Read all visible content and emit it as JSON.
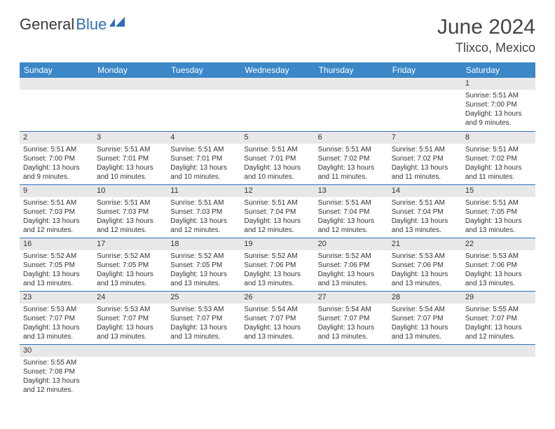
{
  "brand": {
    "text_dark": "General",
    "text_blue": "Blue"
  },
  "title": "June 2024",
  "location": "Tlixco, Mexico",
  "colors": {
    "header_bg": "#3b87c8",
    "header_text": "#ffffff",
    "daynum_bg": "#e8e8e8",
    "border": "#2d6fb8",
    "text": "#333333",
    "logo_dark": "#3a3a3a",
    "logo_blue": "#2d6fb8",
    "background": "#ffffff"
  },
  "fonts": {
    "title_size_pt": 30,
    "location_size_pt": 18,
    "header_size_pt": 12,
    "daynum_size_pt": 11,
    "body_size_pt": 10
  },
  "weekdays": [
    "Sunday",
    "Monday",
    "Tuesday",
    "Wednesday",
    "Thursday",
    "Friday",
    "Saturday"
  ],
  "weeks": [
    [
      null,
      null,
      null,
      null,
      null,
      null,
      {
        "n": "1",
        "sr": "Sunrise: 5:51 AM",
        "ss": "Sunset: 7:00 PM",
        "dl": "Daylight: 13 hours and 9 minutes."
      }
    ],
    [
      {
        "n": "2",
        "sr": "Sunrise: 5:51 AM",
        "ss": "Sunset: 7:00 PM",
        "dl": "Daylight: 13 hours and 9 minutes."
      },
      {
        "n": "3",
        "sr": "Sunrise: 5:51 AM",
        "ss": "Sunset: 7:01 PM",
        "dl": "Daylight: 13 hours and 10 minutes."
      },
      {
        "n": "4",
        "sr": "Sunrise: 5:51 AM",
        "ss": "Sunset: 7:01 PM",
        "dl": "Daylight: 13 hours and 10 minutes."
      },
      {
        "n": "5",
        "sr": "Sunrise: 5:51 AM",
        "ss": "Sunset: 7:01 PM",
        "dl": "Daylight: 13 hours and 10 minutes."
      },
      {
        "n": "6",
        "sr": "Sunrise: 5:51 AM",
        "ss": "Sunset: 7:02 PM",
        "dl": "Daylight: 13 hours and 11 minutes."
      },
      {
        "n": "7",
        "sr": "Sunrise: 5:51 AM",
        "ss": "Sunset: 7:02 PM",
        "dl": "Daylight: 13 hours and 11 minutes."
      },
      {
        "n": "8",
        "sr": "Sunrise: 5:51 AM",
        "ss": "Sunset: 7:02 PM",
        "dl": "Daylight: 13 hours and 11 minutes."
      }
    ],
    [
      {
        "n": "9",
        "sr": "Sunrise: 5:51 AM",
        "ss": "Sunset: 7:03 PM",
        "dl": "Daylight: 13 hours and 12 minutes."
      },
      {
        "n": "10",
        "sr": "Sunrise: 5:51 AM",
        "ss": "Sunset: 7:03 PM",
        "dl": "Daylight: 13 hours and 12 minutes."
      },
      {
        "n": "11",
        "sr": "Sunrise: 5:51 AM",
        "ss": "Sunset: 7:03 PM",
        "dl": "Daylight: 13 hours and 12 minutes."
      },
      {
        "n": "12",
        "sr": "Sunrise: 5:51 AM",
        "ss": "Sunset: 7:04 PM",
        "dl": "Daylight: 13 hours and 12 minutes."
      },
      {
        "n": "13",
        "sr": "Sunrise: 5:51 AM",
        "ss": "Sunset: 7:04 PM",
        "dl": "Daylight: 13 hours and 12 minutes."
      },
      {
        "n": "14",
        "sr": "Sunrise: 5:51 AM",
        "ss": "Sunset: 7:04 PM",
        "dl": "Daylight: 13 hours and 13 minutes."
      },
      {
        "n": "15",
        "sr": "Sunrise: 5:51 AM",
        "ss": "Sunset: 7:05 PM",
        "dl": "Daylight: 13 hours and 13 minutes."
      }
    ],
    [
      {
        "n": "16",
        "sr": "Sunrise: 5:52 AM",
        "ss": "Sunset: 7:05 PM",
        "dl": "Daylight: 13 hours and 13 minutes."
      },
      {
        "n": "17",
        "sr": "Sunrise: 5:52 AM",
        "ss": "Sunset: 7:05 PM",
        "dl": "Daylight: 13 hours and 13 minutes."
      },
      {
        "n": "18",
        "sr": "Sunrise: 5:52 AM",
        "ss": "Sunset: 7:05 PM",
        "dl": "Daylight: 13 hours and 13 minutes."
      },
      {
        "n": "19",
        "sr": "Sunrise: 5:52 AM",
        "ss": "Sunset: 7:06 PM",
        "dl": "Daylight: 13 hours and 13 minutes."
      },
      {
        "n": "20",
        "sr": "Sunrise: 5:52 AM",
        "ss": "Sunset: 7:06 PM",
        "dl": "Daylight: 13 hours and 13 minutes."
      },
      {
        "n": "21",
        "sr": "Sunrise: 5:53 AM",
        "ss": "Sunset: 7:06 PM",
        "dl": "Daylight: 13 hours and 13 minutes."
      },
      {
        "n": "22",
        "sr": "Sunrise: 5:53 AM",
        "ss": "Sunset: 7:06 PM",
        "dl": "Daylight: 13 hours and 13 minutes."
      }
    ],
    [
      {
        "n": "23",
        "sr": "Sunrise: 5:53 AM",
        "ss": "Sunset: 7:07 PM",
        "dl": "Daylight: 13 hours and 13 minutes."
      },
      {
        "n": "24",
        "sr": "Sunrise: 5:53 AM",
        "ss": "Sunset: 7:07 PM",
        "dl": "Daylight: 13 hours and 13 minutes."
      },
      {
        "n": "25",
        "sr": "Sunrise: 5:53 AM",
        "ss": "Sunset: 7:07 PM",
        "dl": "Daylight: 13 hours and 13 minutes."
      },
      {
        "n": "26",
        "sr": "Sunrise: 5:54 AM",
        "ss": "Sunset: 7:07 PM",
        "dl": "Daylight: 13 hours and 13 minutes."
      },
      {
        "n": "27",
        "sr": "Sunrise: 5:54 AM",
        "ss": "Sunset: 7:07 PM",
        "dl": "Daylight: 13 hours and 13 minutes."
      },
      {
        "n": "28",
        "sr": "Sunrise: 5:54 AM",
        "ss": "Sunset: 7:07 PM",
        "dl": "Daylight: 13 hours and 13 minutes."
      },
      {
        "n": "29",
        "sr": "Sunrise: 5:55 AM",
        "ss": "Sunset: 7:07 PM",
        "dl": "Daylight: 13 hours and 12 minutes."
      }
    ],
    [
      {
        "n": "30",
        "sr": "Sunrise: 5:55 AM",
        "ss": "Sunset: 7:08 PM",
        "dl": "Daylight: 13 hours and 12 minutes."
      },
      null,
      null,
      null,
      null,
      null,
      null
    ]
  ]
}
